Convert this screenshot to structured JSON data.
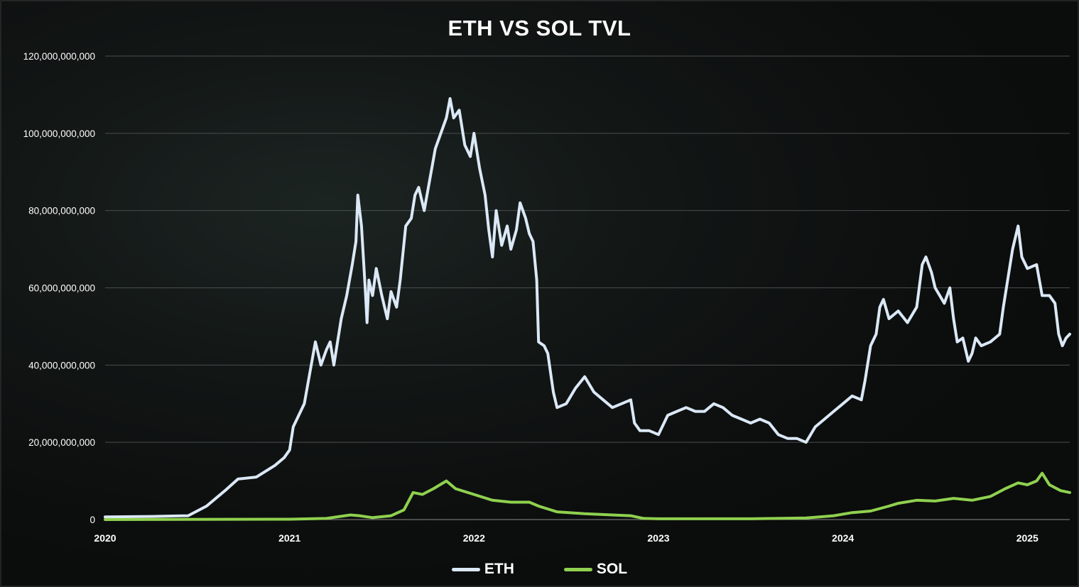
{
  "chart_data": {
    "type": "line",
    "title": "ETH VS SOL TVL",
    "xlabel": "",
    "ylabel": "",
    "x_ticks": [
      "2020",
      "2021",
      "2022",
      "2023",
      "2024",
      "2025"
    ],
    "xlim": [
      2020.0,
      2025.23
    ],
    "y_ticks": [
      "0",
      "20,000,000,000",
      "40,000,000,000",
      "60,000,000,000",
      "80,000,000,000",
      "100,000,000,000",
      "120,000,000,000"
    ],
    "ylim": [
      0,
      120000000000
    ],
    "grid": "horizontal",
    "legend": "bottom-center",
    "background": "#0b0c0c",
    "series": [
      {
        "name": "ETH",
        "color": "#dbe8f6",
        "points": [
          [
            2020.0,
            0.7
          ],
          [
            2020.25,
            0.8
          ],
          [
            2020.45,
            1.0
          ],
          [
            2020.55,
            3.5
          ],
          [
            2020.65,
            7.5
          ],
          [
            2020.72,
            10.5
          ],
          [
            2020.82,
            11.0
          ],
          [
            2020.92,
            14.0
          ],
          [
            2020.97,
            16.0
          ],
          [
            2021.0,
            18.0
          ],
          [
            2021.02,
            24.0
          ],
          [
            2021.08,
            30.0
          ],
          [
            2021.11,
            38.0
          ],
          [
            2021.14,
            46.0
          ],
          [
            2021.17,
            40.0
          ],
          [
            2021.2,
            44.0
          ],
          [
            2021.22,
            46.0
          ],
          [
            2021.24,
            40.0
          ],
          [
            2021.28,
            52.0
          ],
          [
            2021.31,
            58.0
          ],
          [
            2021.34,
            66.0
          ],
          [
            2021.36,
            72.0
          ],
          [
            2021.37,
            84.0
          ],
          [
            2021.39,
            76.0
          ],
          [
            2021.41,
            60.0
          ],
          [
            2021.42,
            51.0
          ],
          [
            2021.43,
            62.0
          ],
          [
            2021.45,
            58.0
          ],
          [
            2021.47,
            65.0
          ],
          [
            2021.5,
            58.0
          ],
          [
            2021.53,
            52.0
          ],
          [
            2021.55,
            59.0
          ],
          [
            2021.58,
            55.0
          ],
          [
            2021.6,
            62.0
          ],
          [
            2021.63,
            76.0
          ],
          [
            2021.66,
            78.0
          ],
          [
            2021.68,
            84.0
          ],
          [
            2021.7,
            86.0
          ],
          [
            2021.73,
            80.0
          ],
          [
            2021.76,
            88.0
          ],
          [
            2021.79,
            96.0
          ],
          [
            2021.82,
            100.0
          ],
          [
            2021.85,
            104.0
          ],
          [
            2021.87,
            109.0
          ],
          [
            2021.89,
            104.0
          ],
          [
            2021.92,
            106.0
          ],
          [
            2021.95,
            97.0
          ],
          [
            2021.98,
            94.0
          ],
          [
            2022.0,
            100.0
          ],
          [
            2022.03,
            91.0
          ],
          [
            2022.06,
            84.0
          ],
          [
            2022.08,
            75.0
          ],
          [
            2022.1,
            68.0
          ],
          [
            2022.12,
            80.0
          ],
          [
            2022.15,
            71.0
          ],
          [
            2022.18,
            76.0
          ],
          [
            2022.2,
            70.0
          ],
          [
            2022.23,
            75.0
          ],
          [
            2022.25,
            82.0
          ],
          [
            2022.28,
            78.0
          ],
          [
            2022.3,
            74.0
          ],
          [
            2022.32,
            72.0
          ],
          [
            2022.34,
            62.0
          ],
          [
            2022.35,
            46.0
          ],
          [
            2022.38,
            45.0
          ],
          [
            2022.4,
            43.0
          ],
          [
            2022.43,
            33.0
          ],
          [
            2022.45,
            29.0
          ],
          [
            2022.5,
            30.0
          ],
          [
            2022.55,
            34.0
          ],
          [
            2022.6,
            37.0
          ],
          [
            2022.65,
            33.0
          ],
          [
            2022.7,
            31.0
          ],
          [
            2022.75,
            29.0
          ],
          [
            2022.8,
            30.0
          ],
          [
            2022.85,
            31.0
          ],
          [
            2022.87,
            25.0
          ],
          [
            2022.9,
            23.0
          ],
          [
            2022.95,
            23.0
          ],
          [
            2023.0,
            22.0
          ],
          [
            2023.05,
            27.0
          ],
          [
            2023.1,
            28.0
          ],
          [
            2023.15,
            29.0
          ],
          [
            2023.2,
            28.0
          ],
          [
            2023.25,
            28.0
          ],
          [
            2023.3,
            30.0
          ],
          [
            2023.35,
            29.0
          ],
          [
            2023.4,
            27.0
          ],
          [
            2023.45,
            26.0
          ],
          [
            2023.5,
            25.0
          ],
          [
            2023.55,
            26.0
          ],
          [
            2023.6,
            25.0
          ],
          [
            2023.65,
            22.0
          ],
          [
            2023.7,
            21.0
          ],
          [
            2023.75,
            21.0
          ],
          [
            2023.8,
            20.0
          ],
          [
            2023.85,
            24.0
          ],
          [
            2023.9,
            26.0
          ],
          [
            2023.95,
            28.0
          ],
          [
            2024.0,
            30.0
          ],
          [
            2024.05,
            32.0
          ],
          [
            2024.1,
            31.0
          ],
          [
            2024.12,
            36.0
          ],
          [
            2024.15,
            45.0
          ],
          [
            2024.18,
            48.0
          ],
          [
            2024.2,
            55.0
          ],
          [
            2024.22,
            57.0
          ],
          [
            2024.25,
            52.0
          ],
          [
            2024.3,
            54.0
          ],
          [
            2024.35,
            51.0
          ],
          [
            2024.4,
            55.0
          ],
          [
            2024.43,
            66.0
          ],
          [
            2024.45,
            68.0
          ],
          [
            2024.48,
            64.0
          ],
          [
            2024.5,
            60.0
          ],
          [
            2024.55,
            56.0
          ],
          [
            2024.58,
            60.0
          ],
          [
            2024.6,
            52.0
          ],
          [
            2024.62,
            46.0
          ],
          [
            2024.65,
            47.0
          ],
          [
            2024.68,
            41.0
          ],
          [
            2024.7,
            43.0
          ],
          [
            2024.72,
            47.0
          ],
          [
            2024.75,
            45.0
          ],
          [
            2024.8,
            46.0
          ],
          [
            2024.85,
            48.0
          ],
          [
            2024.87,
            55.0
          ],
          [
            2024.9,
            64.0
          ],
          [
            2024.92,
            70.0
          ],
          [
            2024.95,
            76.0
          ],
          [
            2024.97,
            68.0
          ],
          [
            2025.0,
            65.0
          ],
          [
            2025.05,
            66.0
          ],
          [
            2025.08,
            58.0
          ],
          [
            2025.12,
            58.0
          ],
          [
            2025.15,
            56.0
          ],
          [
            2025.17,
            48.0
          ],
          [
            2025.19,
            45.0
          ],
          [
            2025.21,
            47.0
          ],
          [
            2025.23,
            48.0
          ]
        ]
      },
      {
        "name": "SOL",
        "color": "#8fd14f",
        "points": [
          [
            2020.0,
            0.0
          ],
          [
            2021.0,
            0.1
          ],
          [
            2021.2,
            0.3
          ],
          [
            2021.33,
            1.2
          ],
          [
            2021.38,
            1.0
          ],
          [
            2021.45,
            0.5
          ],
          [
            2021.55,
            1.0
          ],
          [
            2021.62,
            2.5
          ],
          [
            2021.67,
            7.0
          ],
          [
            2021.72,
            6.5
          ],
          [
            2021.78,
            8.0
          ],
          [
            2021.85,
            10.0
          ],
          [
            2021.9,
            8.0
          ],
          [
            2022.0,
            6.5
          ],
          [
            2022.1,
            5.0
          ],
          [
            2022.2,
            4.5
          ],
          [
            2022.3,
            4.5
          ],
          [
            2022.35,
            3.5
          ],
          [
            2022.45,
            2.0
          ],
          [
            2022.6,
            1.5
          ],
          [
            2022.75,
            1.2
          ],
          [
            2022.85,
            1.0
          ],
          [
            2022.92,
            0.3
          ],
          [
            2023.0,
            0.2
          ],
          [
            2023.5,
            0.2
          ],
          [
            2023.8,
            0.4
          ],
          [
            2023.95,
            1.0
          ],
          [
            2024.05,
            1.8
          ],
          [
            2024.15,
            2.2
          ],
          [
            2024.25,
            3.5
          ],
          [
            2024.3,
            4.2
          ],
          [
            2024.4,
            5.0
          ],
          [
            2024.5,
            4.8
          ],
          [
            2024.6,
            5.5
          ],
          [
            2024.7,
            5.0
          ],
          [
            2024.8,
            6.0
          ],
          [
            2024.88,
            8.0
          ],
          [
            2024.95,
            9.5
          ],
          [
            2025.0,
            9.0
          ],
          [
            2025.05,
            10.0
          ],
          [
            2025.08,
            12.0
          ],
          [
            2025.12,
            9.0
          ],
          [
            2025.18,
            7.5
          ],
          [
            2025.23,
            7.0
          ]
        ]
      }
    ]
  }
}
